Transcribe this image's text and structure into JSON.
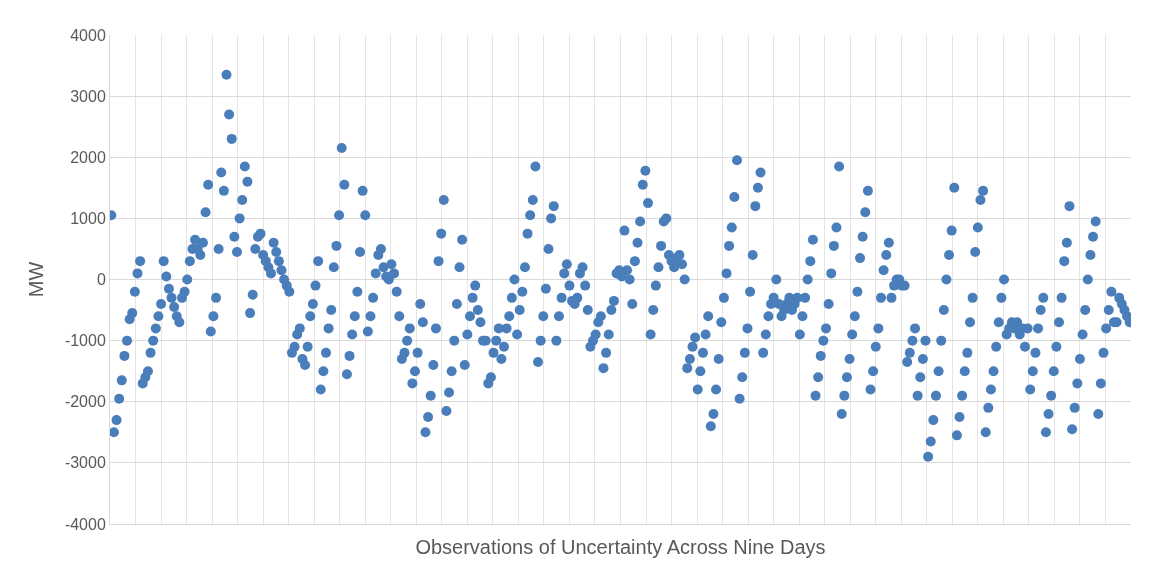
{
  "chart_data": {
    "type": "scatter",
    "xlabel": "Observations of Uncertainty Across Nine Days",
    "ylabel": "MW",
    "ylim": [
      -4000,
      4000
    ],
    "yticks": [
      -4000,
      -3000,
      -2000,
      -1000,
      0,
      1000,
      2000,
      3000,
      4000
    ],
    "grid": true,
    "marker": "circle",
    "tick_labels": "y",
    "series": [
      {
        "color": "#4a7ebb",
        "values": [
          1050,
          -2500,
          -2300,
          -1950,
          -1650,
          -1250,
          -1000,
          -650,
          -550,
          -200,
          100,
          300,
          -1700,
          -1600,
          -1500,
          -1200,
          -1000,
          -800,
          -600,
          -400,
          300,
          50,
          -150,
          -300,
          -450,
          -600,
          -700,
          -300,
          -200,
          0,
          300,
          500,
          650,
          500,
          400,
          600,
          1100,
          1550,
          -850,
          -600,
          -300,
          500,
          1750,
          1450,
          3350,
          2700,
          2300,
          700,
          450,
          1000,
          1300,
          1850,
          1600,
          -550,
          -250,
          500,
          700,
          750,
          400,
          300,
          200,
          100,
          600,
          450,
          300,
          150,
          0,
          -100,
          -200,
          -1200,
          -1100,
          -900,
          -800,
          -1300,
          -1400,
          -1100,
          -600,
          -400,
          -100,
          300,
          -1800,
          -1500,
          -1200,
          -800,
          -500,
          200,
          550,
          1050,
          2150,
          1550,
          -1550,
          -1250,
          -900,
          -600,
          -200,
          450,
          1450,
          1050,
          -850,
          -600,
          -300,
          100,
          400,
          500,
          200,
          50,
          0,
          250,
          100,
          -200,
          -600,
          -1300,
          -1200,
          -1000,
          -800,
          -1700,
          -1500,
          -1200,
          -400,
          -700,
          -2500,
          -2250,
          -1900,
          -1400,
          -800,
          300,
          750,
          1300,
          -2150,
          -1850,
          -1500,
          -1000,
          -400,
          200,
          650,
          -1400,
          -900,
          -600,
          -300,
          -100,
          -500,
          -700,
          -1000,
          -1000,
          -1700,
          -1600,
          -1200,
          -1000,
          -800,
          -1300,
          -1100,
          -800,
          -600,
          -300,
          0,
          -900,
          -500,
          -200,
          200,
          750,
          1050,
          1300,
          1850,
          -1350,
          -1000,
          -600,
          -150,
          500,
          1000,
          1200,
          -1000,
          -600,
          -300,
          100,
          250,
          -100,
          -350,
          -400,
          -300,
          100,
          200,
          -100,
          -500,
          -1100,
          -1000,
          -900,
          -700,
          -600,
          -1450,
          -1200,
          -900,
          -500,
          -350,
          100,
          150,
          50,
          800,
          150,
          0,
          -400,
          300,
          600,
          950,
          1550,
          1780,
          1250,
          -900,
          -500,
          -100,
          200,
          550,
          950,
          1000,
          400,
          300,
          200,
          350,
          400,
          250,
          0,
          -1450,
          -1300,
          -1100,
          -950,
          -1800,
          -1500,
          -1200,
          -900,
          -600,
          -2400,
          -2200,
          -1800,
          -1300,
          -700,
          -300,
          100,
          550,
          850,
          1350,
          1950,
          -1950,
          -1600,
          -1200,
          -800,
          -200,
          400,
          1200,
          1500,
          1750,
          -1200,
          -900,
          -600,
          -400,
          -300,
          0,
          -400,
          -600,
          -500,
          -400,
          -300,
          -500,
          -400,
          -300,
          -900,
          -600,
          -300,
          0,
          300,
          650,
          -1900,
          -1600,
          -1250,
          -1000,
          -800,
          -400,
          100,
          550,
          850,
          1850,
          -2200,
          -1900,
          -1600,
          -1300,
          -900,
          -600,
          -200,
          350,
          700,
          1100,
          1450,
          -1800,
          -1500,
          -1100,
          -800,
          -300,
          150,
          400,
          600,
          -300,
          -100,
          0,
          0,
          -100,
          -100,
          -1350,
          -1200,
          -1000,
          -800,
          -1900,
          -1600,
          -1300,
          -1000,
          -2900,
          -2650,
          -2300,
          -1900,
          -1500,
          -1000,
          -500,
          0,
          400,
          800,
          1500,
          -2550,
          -2250,
          -1900,
          -1500,
          -1200,
          -700,
          -300,
          450,
          850,
          1300,
          1450,
          -2500,
          -2100,
          -1800,
          -1500,
          -1100,
          -700,
          -300,
          0,
          -900,
          -800,
          -700,
          -800,
          -700,
          -900,
          -800,
          -1100,
          -800,
          -1800,
          -1500,
          -1200,
          -800,
          -500,
          -300,
          -2500,
          -2200,
          -1900,
          -1500,
          -1100,
          -700,
          -300,
          300,
          600,
          1200,
          -2450,
          -2100,
          -1700,
          -1300,
          -900,
          -500,
          0,
          400,
          700,
          950,
          -2200,
          -1700,
          -1200,
          -800,
          -500,
          -200,
          -700,
          -700,
          -300,
          -400,
          -500,
          -600,
          -700
        ]
      }
    ]
  }
}
